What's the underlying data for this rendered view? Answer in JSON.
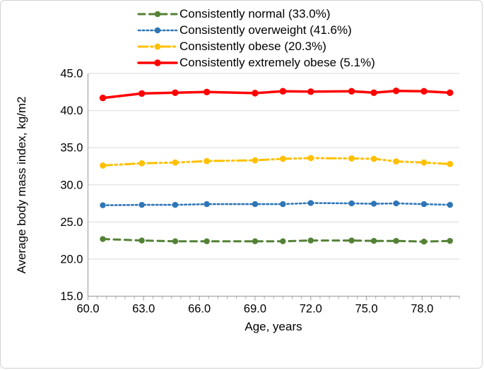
{
  "figure": {
    "background": "#ffffff",
    "border_color": "#d2d2d2",
    "gridline_color": "#d9d9d9",
    "axis_color": "#a6a6a6",
    "text_color": "#000000"
  },
  "chart_data": {
    "type": "line",
    "title": "",
    "xlabel": "Age, years",
    "ylabel": "Average body mass index, kg/m2",
    "xlim": [
      60,
      80
    ],
    "ylim": [
      15,
      45
    ],
    "x_ticks": [
      60,
      63,
      66,
      69,
      72,
      75,
      78
    ],
    "x_tick_labels": [
      "60.0",
      "63.0",
      "66.0",
      "69.0",
      "72.0",
      "75.0",
      "78.0"
    ],
    "y_ticks": [
      15,
      20,
      25,
      30,
      35,
      40,
      45
    ],
    "y_tick_labels": [
      "15.0",
      "20.0",
      "25.0",
      "30.0",
      "35.0",
      "40.0",
      "45.0"
    ],
    "x_minor_tick_step": 0.5,
    "grid": "horizontal-only",
    "legend_position": "top-center",
    "x": [
      60.8,
      62.9,
      64.7,
      66.4,
      69.0,
      70.5,
      72.0,
      74.2,
      75.4,
      76.6,
      78.1,
      79.5
    ],
    "series": [
      {
        "name": "Consistently normal (33.0%)",
        "color": "#538135",
        "line_style": "dashed",
        "marker": "circle",
        "values": [
          22.7,
          22.5,
          22.4,
          22.4,
          22.4,
          22.4,
          22.5,
          22.5,
          22.45,
          22.45,
          22.35,
          22.45
        ]
      },
      {
        "name": "Consistently overweight (41.6%)",
        "color": "#2e75b6",
        "line_style": "dotted",
        "marker": "circle",
        "values": [
          27.25,
          27.3,
          27.3,
          27.4,
          27.4,
          27.4,
          27.55,
          27.5,
          27.45,
          27.5,
          27.4,
          27.3
        ]
      },
      {
        "name": "Consistently obese (20.3%)",
        "color": "#ffc000",
        "line_style": "dash-dot-dot",
        "marker": "circle",
        "values": [
          32.6,
          32.9,
          33.0,
          33.2,
          33.3,
          33.5,
          33.6,
          33.55,
          33.5,
          33.15,
          33.0,
          32.8
        ]
      },
      {
        "name": "Consistently extremely obese (5.1%)",
        "color": "#ff0000",
        "line_style": "solid",
        "marker": "circle",
        "values": [
          41.7,
          42.3,
          42.4,
          42.5,
          42.35,
          42.6,
          42.55,
          42.6,
          42.4,
          42.65,
          42.6,
          42.4
        ]
      }
    ]
  }
}
